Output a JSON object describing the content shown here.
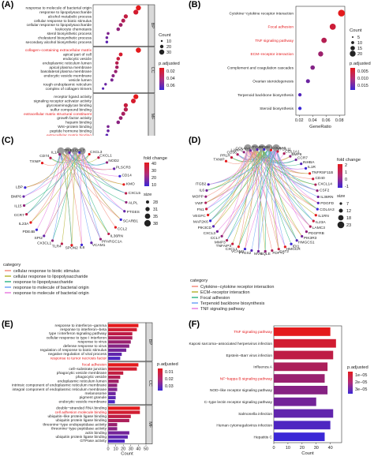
{
  "panels": {
    "A": {
      "label": "(A)",
      "xlabel": "GeneRatio",
      "xticks": [
        "0.00",
        "0.05",
        "0.10",
        "0.15",
        "0.20"
      ],
      "strips": [
        "BP",
        "CC",
        "MF"
      ],
      "legend_count_title": "Count",
      "legend_count_values": [
        "10",
        "20",
        "30"
      ],
      "legend_p_title": "p.adjusted",
      "legend_p_values": [
        "0.02",
        "0.04",
        "0.06"
      ],
      "groups": [
        {
          "strip": "BP",
          "terms": [
            {
              "term": "response to molecule of bacterial origin",
              "x": 0.17,
              "red": false
            },
            {
              "term": "response to lipopolysaccharide",
              "x": 0.16,
              "red": false
            },
            {
              "term": "alcohol metabolic process",
              "x": 0.12,
              "red": false
            },
            {
              "term": "cellular response to biotic stimulus",
              "x": 0.11,
              "red": false
            },
            {
              "term": "cellular response to lipopolysaccharide",
              "x": 0.1,
              "red": false
            },
            {
              "term": "leukocyte chemotaxis",
              "x": 0.09,
              "red": false
            },
            {
              "term": "sterol biosynthetic process",
              "x": 0.05,
              "red": false
            },
            {
              "term": "cholesterol biosynthetic process",
              "x": 0.045,
              "red": false
            },
            {
              "term": "secondary alcohol biosynthetic process",
              "x": 0.045,
              "red": false
            }
          ]
        },
        {
          "strip": "CC",
          "terms": [
            {
              "term": "collagen−containing extracellular matrix",
              "x": 0.17,
              "red": true
            },
            {
              "term": "apical part of cell",
              "x": 0.1,
              "red": false
            },
            {
              "term": "endocytic vesicle",
              "x": 0.09,
              "red": false
            },
            {
              "term": "endoplasmic reticulum lumen",
              "x": 0.085,
              "red": false
            },
            {
              "term": "apical plasma membrane",
              "x": 0.085,
              "red": false
            },
            {
              "term": "basolateral plasma membrane",
              "x": 0.08,
              "red": false
            },
            {
              "term": "endocytic vesicle membrane",
              "x": 0.07,
              "red": false
            },
            {
              "term": "vesicle lumen",
              "x": 0.065,
              "red": false
            },
            {
              "term": "rough endoplasmic reticulum",
              "x": 0.04,
              "red": false
            },
            {
              "term": "complex of collagen trimers",
              "x": 0.03,
              "red": false
            }
          ]
        },
        {
          "strip": "MF",
          "terms": [
            {
              "term": "receptor ligand activity",
              "x": 0.16,
              "red": false
            },
            {
              "term": "signaling receptor activator activity",
              "x": 0.15,
              "red": false
            },
            {
              "term": "glycosaminoglycan binding",
              "x": 0.12,
              "red": false
            },
            {
              "term": "sulfur compound binding",
              "x": 0.12,
              "red": false
            },
            {
              "term": "extracellular matrix structural constituent",
              "x": 0.11,
              "red": true
            },
            {
              "term": "growth factor activity",
              "x": 0.1,
              "red": false
            },
            {
              "term": "heparin binding",
              "x": 0.09,
              "red": false
            },
            {
              "term": "Wnt−protein binding",
              "x": 0.05,
              "red": false
            },
            {
              "term": "peptide hormone binding",
              "x": 0.05,
              "red": false
            },
            {
              "term": "extracellular matrix binding",
              "x": 0.045,
              "red": true
            }
          ]
        }
      ]
    },
    "B": {
      "label": "(B)",
      "xlabel": "GeneRatio",
      "xticks": [
        "0.02",
        "0.04",
        "0.06",
        "0.08"
      ],
      "legend_count_title": "Count",
      "legend_count_values": [
        "5",
        "10",
        "15",
        "20"
      ],
      "legend_p_title": "p.adjusted",
      "legend_p_values": [
        "0.005",
        "0.010",
        "0.015"
      ],
      "terms": [
        {
          "term": "Cytokine−cytokine receptor interaction",
          "x": 0.083,
          "red": false
        },
        {
          "term": "Focal adhesion",
          "x": 0.07,
          "red": true
        },
        {
          "term": "TNF signaling pathway",
          "x": 0.057,
          "red": true
        },
        {
          "term": "ECM−receptor interaction",
          "x": 0.052,
          "red": true
        },
        {
          "term": "Complement and coagulation cascades",
          "x": 0.04,
          "red": false
        },
        {
          "term": "Ovarian steroidogenesis",
          "x": 0.033,
          "red": false
        },
        {
          "term": "Terpenoid backbone biosynthesis",
          "x": 0.021,
          "red": false
        },
        {
          "term": "Steroid biosynthesis",
          "x": 0.021,
          "red": false
        }
      ]
    },
    "C": {
      "label": "(C)",
      "genes": [
        "TXNIP",
        "CD74",
        "IL1A",
        "TRIB1",
        "CCL7",
        "CXCL3",
        "CXCL1",
        "NOD2",
        "PLSCR3",
        "CD14",
        "KMO",
        "CXCL5",
        "ALPL",
        "PTGES",
        "SCARB1",
        "CCL2",
        "IL36RN",
        "PPARGC1A",
        "VCAM1",
        "IL6",
        "SPON2",
        "TLR4",
        "CX3CL1",
        "SPI2",
        "PDE4B",
        "IL23A",
        "CCR7",
        "IL15",
        "BMP6",
        "LBP"
      ],
      "fold_title": "fold change",
      "fold_values": [
        "40",
        "30",
        "20",
        "10"
      ],
      "size_title": "size",
      "size_values": [
        "28",
        "31",
        "35",
        "38"
      ],
      "category_title": "category",
      "categories": [
        {
          "name": "cellular response to biotic stimulus",
          "color": "#f28e7f"
        },
        {
          "name": "cellular response to lipopolysaccharide",
          "color": "#b7b536"
        },
        {
          "name": "response to lipopolysaccharide",
          "color": "#36b98a"
        },
        {
          "name": "response to molecule of bacterial origin",
          "color": "#6fa3f7"
        },
        {
          "name": "response to molecule of bacterial origin",
          "color": "#e87de0"
        }
      ]
    },
    "D": {
      "label": "(D)",
      "genes": [
        "TXNIP",
        "PRLR",
        "CD36",
        "LAMA2",
        "COL4A4",
        "ITGA8",
        "ITGB8",
        "COL6A6",
        "ITGA11",
        "COL1A1",
        "BMP6",
        "CCR7",
        "INHBA",
        "IL1R",
        "TNFRSF11B",
        "CD40",
        "CXCL14",
        "CSF2",
        "IL36RN",
        "PDGFD",
        "COL4A3",
        "IL1RN",
        "IL23A",
        "LAMC3",
        "PDGFRB",
        "PIK3R3",
        "HMGCS1",
        "IDI1",
        "HMGCR",
        "CAT2",
        "FDFT1",
        "SQLE",
        "MVK",
        "PTGS2",
        "VCAM1",
        "CXCL1",
        "TNFAIP3",
        "MMP3",
        "CCL7",
        "CXCL3",
        "PIK3CD",
        "MAP2K6",
        "VEGFC",
        "FN1",
        "VWF",
        "MOPP",
        "IL6",
        "ITGB2"
      ],
      "fold_title": "fold change",
      "fold_values": [
        "2",
        "1",
        "0",
        "-1"
      ],
      "size_title": "size",
      "size_values": [
        "7",
        "12",
        "18",
        "23"
      ],
      "category_title": "category",
      "categories": [
        {
          "name": "Cytokine−cytokine receptor interaction",
          "color": "#f28e7f"
        },
        {
          "name": "ECM−receptor interaction",
          "color": "#b7b536"
        },
        {
          "name": "Focal adhesion",
          "color": "#36b98a"
        },
        {
          "name": "Terpenoid backbone biosynthesis",
          "color": "#6fa3f7"
        },
        {
          "name": "TNF signaling pathway",
          "color": "#e87de0"
        }
      ]
    },
    "E": {
      "label": "(E)",
      "xlabel": "Count",
      "xticks": [
        "0",
        "10",
        "20",
        "30",
        "40",
        "50"
      ],
      "strips": [
        "BP",
        "CC",
        "MF"
      ],
      "legend_p_title": "p.adjusted",
      "legend_p_values": [
        "0.01",
        "0.02",
        "0.03"
      ],
      "groups": [
        {
          "strip": "BP",
          "terms": [
            {
              "term": "response to interferon−gamma",
              "value": 40,
              "red": false
            },
            {
              "term": "response to interferon−beta",
              "value": 38,
              "red": false
            },
            {
              "term": "type I interferon signaling pathway",
              "value": 32,
              "red": false
            },
            {
              "term": "cellular response to type I interferon",
              "value": 32,
              "red": false
            },
            {
              "term": "response to virus",
              "value": 30,
              "red": false
            },
            {
              "term": "defense response to virus",
              "value": 28,
              "red": false
            },
            {
              "term": "regulation of response to biotic stimulus",
              "value": 24,
              "red": false
            },
            {
              "term": "negative regulation of viral process",
              "value": 18,
              "red": false
            },
            {
              "term": "response to tumor necrosis factor",
              "value": 16,
              "red": true
            }
          ]
        },
        {
          "strip": "CC",
          "terms": [
            {
              "term": "focal adhesion",
              "value": 40,
              "red": true
            },
            {
              "term": "cell−substrate junction",
              "value": 38,
              "red": false
            },
            {
              "term": "phagocytic vesicle membrane",
              "value": 20,
              "red": false
            },
            {
              "term": "phagocytic vesicle",
              "value": 16,
              "red": false
            },
            {
              "term": "endoplasmic reticulum lumen",
              "value": 14,
              "red": false
            },
            {
              "term": "intrinsic component of endoplasmic reticulum membrane",
              "value": 12,
              "red": false
            },
            {
              "term": "integral component of endoplasmic reticulum membrane",
              "value": 12,
              "red": false
            },
            {
              "term": "melanosome",
              "value": 10,
              "red": false
            },
            {
              "term": "pigment granule",
              "value": 10,
              "red": false
            },
            {
              "term": "endocytic vesicle membrane",
              "value": 9,
              "red": false
            }
          ]
        },
        {
          "strip": "MF",
          "terms": [
            {
              "term": "double−stranded RNA binding",
              "value": 42,
              "red": false
            },
            {
              "term": "cell adhesion molecule binding",
              "value": 42,
              "red": true
            },
            {
              "term": "ubiquitin−like protein ligase binding",
              "value": 30,
              "red": false
            },
            {
              "term": "ubiquitin protein ligase binding",
              "value": 28,
              "red": false
            },
            {
              "term": "threonine−type endopeptidase activity",
              "value": 12,
              "red": false
            },
            {
              "term": "threonine−type peptidase activity",
              "value": 12,
              "red": false
            },
            {
              "term": "actin binding",
              "value": 28,
              "red": false
            },
            {
              "term": "ubiquitin protein ligase binding",
              "value": 26,
              "red": false
            },
            {
              "term": "GTPase activity",
              "value": 22,
              "red": false
            }
          ]
        }
      ]
    },
    "F": {
      "label": "(F)",
      "xlabel": "Count",
      "xticks": [
        "0",
        "10",
        "20",
        "30",
        "40"
      ],
      "legend_p_title": "p.adjusted",
      "legend_p_values": [
        "1e−05",
        "2e−05",
        "3e−05"
      ],
      "terms": [
        {
          "term": "TNF signaling pathway",
          "value": 40,
          "red": true
        },
        {
          "term": "Kaposi sarcoma−associated herpesvirus infection",
          "value": 44,
          "red": false
        },
        {
          "term": "Epstein−Barr virus infection",
          "value": 42,
          "red": false
        },
        {
          "term": "Influenza A",
          "value": 38,
          "red": false
        },
        {
          "term": "NF−kappa B signaling pathway",
          "value": 36,
          "red": true
        },
        {
          "term": "NOD−like receptor signaling pathway",
          "value": 38,
          "red": false
        },
        {
          "term": "C−type lectin receptor signaling pathway",
          "value": 30,
          "red": false
        },
        {
          "term": "Salmonella infection",
          "value": 42,
          "red": false
        },
        {
          "term": "Human cytomegalovirus infection",
          "value": 40,
          "red": false
        },
        {
          "term": "Hepatitis C",
          "value": 36,
          "red": false
        }
      ]
    }
  }
}
